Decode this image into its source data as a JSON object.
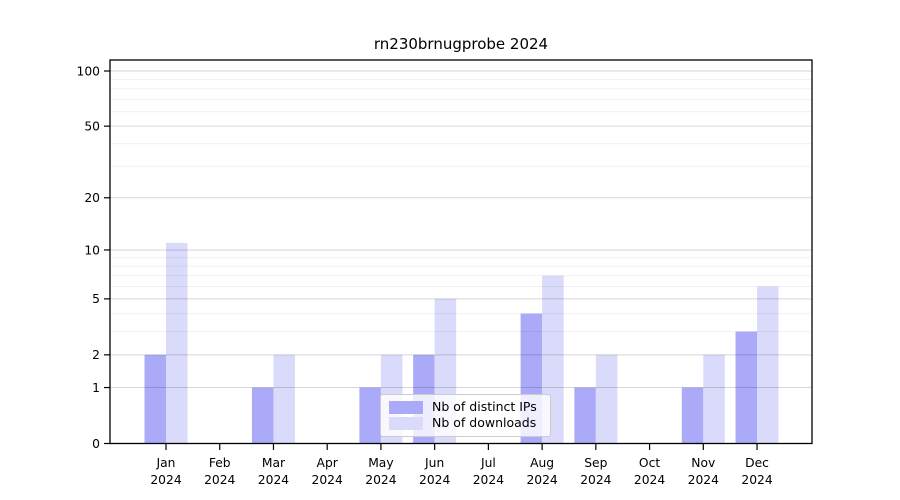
{
  "title": "rn230brnugprobe 2024",
  "colors": {
    "ips": "#aaaaf8",
    "downloads": "#dadafa",
    "axis": "#000000",
    "grid_major": "rgba(0,0,0,0.16)",
    "grid_minor": "rgba(0,0,0,0.055)",
    "legend_bg": "rgba(255,255,255,0.8)",
    "legend_border": "#cccccc"
  },
  "legend": {
    "items": [
      {
        "label": "Nb of distinct IPs",
        "key": "ips"
      },
      {
        "label": "Nb of downloads",
        "key": "downloads"
      }
    ]
  },
  "chart_data": {
    "type": "bar",
    "title": "rn230brnugprobe 2024",
    "categories": [
      "Jan 2024",
      "Feb 2024",
      "Mar 2024",
      "Apr 2024",
      "May 2024",
      "Jun 2024",
      "Jul 2024",
      "Aug 2024",
      "Sep 2024",
      "Oct 2024",
      "Nov 2024",
      "Dec 2024"
    ],
    "series": [
      {
        "name": "Nb of distinct IPs",
        "values": [
          2,
          0,
          1,
          0,
          1,
          2,
          0,
          4,
          1,
          0,
          1,
          3
        ]
      },
      {
        "name": "Nb of downloads",
        "values": [
          11,
          0,
          2,
          0,
          2,
          5,
          0,
          7,
          2,
          0,
          2,
          6
        ]
      }
    ],
    "yscale": "log1p",
    "ylim": [
      0,
      115
    ],
    "yticks": [
      0,
      1,
      2,
      5,
      10,
      20,
      50,
      100
    ],
    "yticks_minor": [
      3,
      4,
      6,
      7,
      8,
      9,
      30,
      40,
      60,
      70,
      80,
      90
    ],
    "grid": "on",
    "legend_position": "lower center inside axes"
  }
}
